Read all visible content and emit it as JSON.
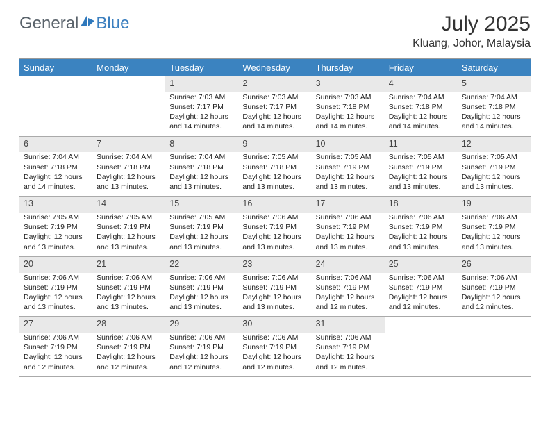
{
  "logo": {
    "text1": "General",
    "text2": "Blue"
  },
  "title": "July 2025",
  "location": "Kluang, Johor, Malaysia",
  "colors": {
    "header_bg": "#3b83c0",
    "header_text": "#ffffff",
    "daynum_bg": "#e9e9e9",
    "border": "#9aa0a6",
    "logo_blue": "#2f79bd",
    "logo_gray": "#5a636b"
  },
  "days_of_week": [
    "Sunday",
    "Monday",
    "Tuesday",
    "Wednesday",
    "Thursday",
    "Friday",
    "Saturday"
  ],
  "layout": {
    "first_day_col": 2,
    "days_in_month": 31,
    "label_sunrise": "Sunrise: ",
    "label_sunset": "Sunset: ",
    "label_daylight": "Daylight: "
  },
  "cells": [
    {
      "n": 1,
      "sunrise": "7:03 AM",
      "sunset": "7:17 PM",
      "daylight": "12 hours and 14 minutes."
    },
    {
      "n": 2,
      "sunrise": "7:03 AM",
      "sunset": "7:17 PM",
      "daylight": "12 hours and 14 minutes."
    },
    {
      "n": 3,
      "sunrise": "7:03 AM",
      "sunset": "7:18 PM",
      "daylight": "12 hours and 14 minutes."
    },
    {
      "n": 4,
      "sunrise": "7:04 AM",
      "sunset": "7:18 PM",
      "daylight": "12 hours and 14 minutes."
    },
    {
      "n": 5,
      "sunrise": "7:04 AM",
      "sunset": "7:18 PM",
      "daylight": "12 hours and 14 minutes."
    },
    {
      "n": 6,
      "sunrise": "7:04 AM",
      "sunset": "7:18 PM",
      "daylight": "12 hours and 14 minutes."
    },
    {
      "n": 7,
      "sunrise": "7:04 AM",
      "sunset": "7:18 PM",
      "daylight": "12 hours and 13 minutes."
    },
    {
      "n": 8,
      "sunrise": "7:04 AM",
      "sunset": "7:18 PM",
      "daylight": "12 hours and 13 minutes."
    },
    {
      "n": 9,
      "sunrise": "7:05 AM",
      "sunset": "7:18 PM",
      "daylight": "12 hours and 13 minutes."
    },
    {
      "n": 10,
      "sunrise": "7:05 AM",
      "sunset": "7:19 PM",
      "daylight": "12 hours and 13 minutes."
    },
    {
      "n": 11,
      "sunrise": "7:05 AM",
      "sunset": "7:19 PM",
      "daylight": "12 hours and 13 minutes."
    },
    {
      "n": 12,
      "sunrise": "7:05 AM",
      "sunset": "7:19 PM",
      "daylight": "12 hours and 13 minutes."
    },
    {
      "n": 13,
      "sunrise": "7:05 AM",
      "sunset": "7:19 PM",
      "daylight": "12 hours and 13 minutes."
    },
    {
      "n": 14,
      "sunrise": "7:05 AM",
      "sunset": "7:19 PM",
      "daylight": "12 hours and 13 minutes."
    },
    {
      "n": 15,
      "sunrise": "7:05 AM",
      "sunset": "7:19 PM",
      "daylight": "12 hours and 13 minutes."
    },
    {
      "n": 16,
      "sunrise": "7:06 AM",
      "sunset": "7:19 PM",
      "daylight": "12 hours and 13 minutes."
    },
    {
      "n": 17,
      "sunrise": "7:06 AM",
      "sunset": "7:19 PM",
      "daylight": "12 hours and 13 minutes."
    },
    {
      "n": 18,
      "sunrise": "7:06 AM",
      "sunset": "7:19 PM",
      "daylight": "12 hours and 13 minutes."
    },
    {
      "n": 19,
      "sunrise": "7:06 AM",
      "sunset": "7:19 PM",
      "daylight": "12 hours and 13 minutes."
    },
    {
      "n": 20,
      "sunrise": "7:06 AM",
      "sunset": "7:19 PM",
      "daylight": "12 hours and 13 minutes."
    },
    {
      "n": 21,
      "sunrise": "7:06 AM",
      "sunset": "7:19 PM",
      "daylight": "12 hours and 13 minutes."
    },
    {
      "n": 22,
      "sunrise": "7:06 AM",
      "sunset": "7:19 PM",
      "daylight": "12 hours and 13 minutes."
    },
    {
      "n": 23,
      "sunrise": "7:06 AM",
      "sunset": "7:19 PM",
      "daylight": "12 hours and 13 minutes."
    },
    {
      "n": 24,
      "sunrise": "7:06 AM",
      "sunset": "7:19 PM",
      "daylight": "12 hours and 12 minutes."
    },
    {
      "n": 25,
      "sunrise": "7:06 AM",
      "sunset": "7:19 PM",
      "daylight": "12 hours and 12 minutes."
    },
    {
      "n": 26,
      "sunrise": "7:06 AM",
      "sunset": "7:19 PM",
      "daylight": "12 hours and 12 minutes."
    },
    {
      "n": 27,
      "sunrise": "7:06 AM",
      "sunset": "7:19 PM",
      "daylight": "12 hours and 12 minutes."
    },
    {
      "n": 28,
      "sunrise": "7:06 AM",
      "sunset": "7:19 PM",
      "daylight": "12 hours and 12 minutes."
    },
    {
      "n": 29,
      "sunrise": "7:06 AM",
      "sunset": "7:19 PM",
      "daylight": "12 hours and 12 minutes."
    },
    {
      "n": 30,
      "sunrise": "7:06 AM",
      "sunset": "7:19 PM",
      "daylight": "12 hours and 12 minutes."
    },
    {
      "n": 31,
      "sunrise": "7:06 AM",
      "sunset": "7:19 PM",
      "daylight": "12 hours and 12 minutes."
    }
  ]
}
